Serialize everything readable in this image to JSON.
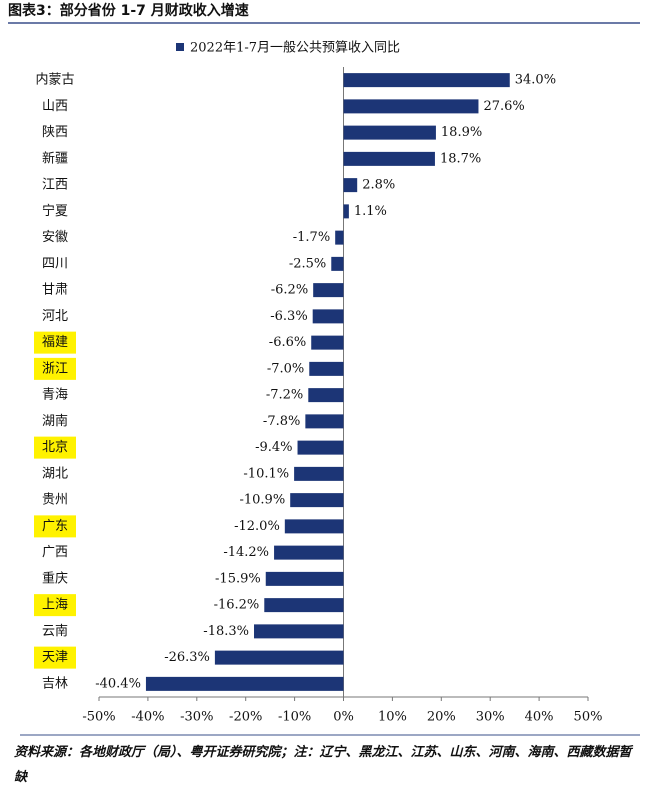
{
  "chart_data": {
    "type": "hbar",
    "title": "图表3：部分省份 1-7 月财政收入增速",
    "categories": [
      "内蒙古",
      "山西",
      "陕西",
      "新疆",
      "江西",
      "宁夏",
      "安徽",
      "四川",
      "甘肃",
      "河北",
      "福建",
      "浙江",
      "青海",
      "湖南",
      "北京",
      "湖北",
      "贵州",
      "广东",
      "广西",
      "重庆",
      "上海",
      "云南",
      "天津",
      "吉林"
    ],
    "series": [
      {
        "name": "2022年1-7月一般公共预算收入同比",
        "color": "#1c3576",
        "values": [
          34.0,
          27.6,
          18.9,
          18.7,
          2.8,
          1.1,
          -1.7,
          -2.5,
          -6.2,
          -6.3,
          -6.6,
          -7.0,
          -7.2,
          -7.8,
          -9.4,
          -10.1,
          -10.9,
          -12.0,
          -14.2,
          -15.9,
          -16.2,
          -18.3,
          -26.3,
          -40.4
        ],
        "value_labels": [
          "34.0%",
          "27.6%",
          "18.9%",
          "18.7%",
          "2.8%",
          "1.1%",
          "-1.7%",
          "-2.5%",
          "-6.2%",
          "-6.3%",
          "-6.6%",
          "-7.0%",
          "-7.2%",
          "-7.8%",
          "-9.4%",
          "-10.1%",
          "-10.9%",
          "-12.0%",
          "-14.2%",
          "-15.9%",
          "-16.2%",
          "-18.3%",
          "-26.3%",
          "-40.4%"
        ]
      }
    ],
    "xlim": [
      -50,
      50
    ],
    "xticks": [
      {
        "value": -50,
        "label": "-50%"
      },
      {
        "value": -40,
        "label": "-40%"
      },
      {
        "value": -30,
        "label": "-30%"
      },
      {
        "value": -20,
        "label": "-20%"
      },
      {
        "value": -10,
        "label": "-10%"
      },
      {
        "value": 0,
        "label": "0%"
      },
      {
        "value": 10,
        "label": "10%"
      },
      {
        "value": 20,
        "label": "20%"
      },
      {
        "value": 30,
        "label": "30%"
      },
      {
        "value": 40,
        "label": "40%"
      },
      {
        "value": 50,
        "label": "50%"
      }
    ],
    "highlighted_categories": [
      10,
      11,
      14,
      17,
      20,
      22
    ],
    "highlight_color": "#fff200",
    "source": "资料来源：各地财政厅（局）、粤开证券研究院；注：辽宁、黑龙江、江苏、山东、河南、海南、西藏数据暂缺"
  }
}
